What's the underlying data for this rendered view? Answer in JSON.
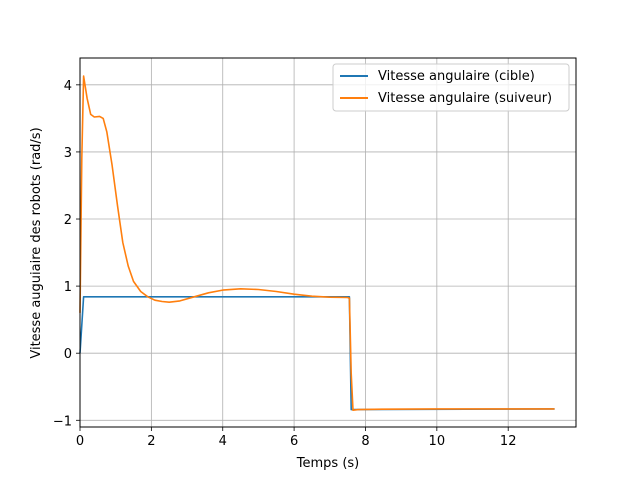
{
  "chart_data": {
    "type": "line",
    "title": "",
    "xlabel": "Temps (s)",
    "ylabel": "Vitesse auguiaire des robots (rad/s)",
    "xlim": [
      0,
      13.9
    ],
    "ylim": [
      -1.1,
      4.4
    ],
    "xticks": [
      0,
      2,
      4,
      6,
      8,
      10,
      12
    ],
    "yticks": [
      -1,
      0,
      1,
      2,
      3,
      4
    ],
    "grid": true,
    "legend_position": "top-right",
    "series": [
      {
        "name": "Vitesse angulaire (cible)",
        "color": "#1f77b4",
        "points": [
          [
            0,
            0
          ],
          [
            0.1,
            0.84
          ],
          [
            7.55,
            0.84
          ],
          [
            7.6,
            -0.84
          ],
          [
            13.3,
            -0.83
          ]
        ]
      },
      {
        "name": "Vitesse angulaire (suiveur)",
        "color": "#ff7f0e",
        "points": [
          [
            0,
            0.6
          ],
          [
            0.05,
            2.9
          ],
          [
            0.1,
            4.13
          ],
          [
            0.2,
            3.8
          ],
          [
            0.3,
            3.56
          ],
          [
            0.4,
            3.52
          ],
          [
            0.55,
            3.53
          ],
          [
            0.65,
            3.5
          ],
          [
            0.75,
            3.3
          ],
          [
            0.9,
            2.8
          ],
          [
            1.05,
            2.2
          ],
          [
            1.2,
            1.65
          ],
          [
            1.35,
            1.3
          ],
          [
            1.5,
            1.07
          ],
          [
            1.7,
            0.92
          ],
          [
            1.9,
            0.84
          ],
          [
            2.1,
            0.79
          ],
          [
            2.3,
            0.77
          ],
          [
            2.5,
            0.76
          ],
          [
            2.8,
            0.78
          ],
          [
            3.2,
            0.84
          ],
          [
            3.6,
            0.9
          ],
          [
            4.0,
            0.94
          ],
          [
            4.5,
            0.96
          ],
          [
            5.0,
            0.95
          ],
          [
            5.5,
            0.92
          ],
          [
            6.0,
            0.88
          ],
          [
            6.5,
            0.85
          ],
          [
            7.0,
            0.835
          ],
          [
            7.5,
            0.83
          ],
          [
            7.55,
            0.82
          ],
          [
            7.6,
            -0.3
          ],
          [
            7.65,
            -0.85
          ],
          [
            7.8,
            -0.84
          ],
          [
            8.5,
            -0.835
          ],
          [
            10,
            -0.83
          ],
          [
            11.5,
            -0.83
          ],
          [
            13.3,
            -0.83
          ]
        ]
      }
    ]
  }
}
